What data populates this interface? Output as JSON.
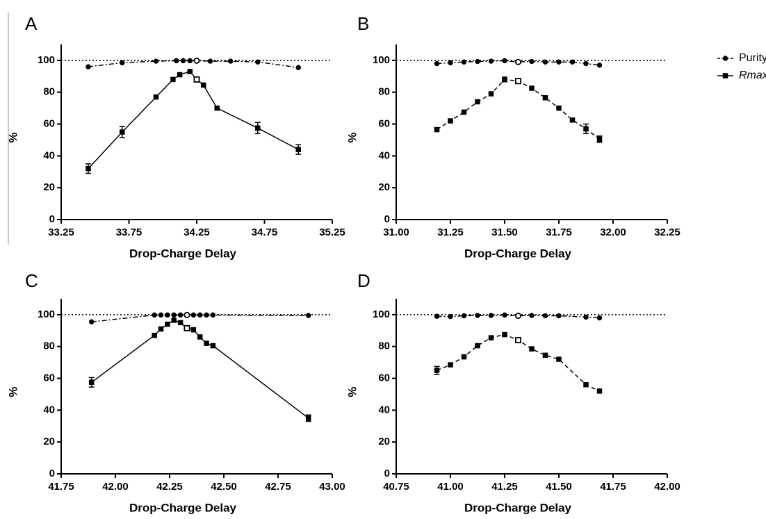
{
  "legend": {
    "entries": [
      {
        "label": "Purity",
        "italic": false,
        "line": "dash-dot",
        "marker": "circle"
      },
      {
        "label": "Rmax",
        "italic": true,
        "line": "dashed",
        "marker": "square"
      }
    ]
  },
  "chart_data": [
    {
      "panel": "A",
      "type": "line",
      "xlabel": "Drop-Charge Delay",
      "ylabel": "%",
      "xlim": [
        33.25,
        35.25
      ],
      "ylim": [
        0,
        110
      ],
      "xticks": [
        "33.25",
        "33.75",
        "34.25",
        "34.75",
        "35.25"
      ],
      "yticks": [
        "0",
        "20",
        "40",
        "60",
        "80",
        "100"
      ],
      "reference_line": 100,
      "highlight_x": 34.25,
      "series": [
        {
          "name": "Purity",
          "style": "dashed",
          "x": [
            33.45,
            33.7,
            33.95,
            34.1,
            34.15,
            34.2,
            34.25,
            34.35,
            34.5,
            34.7,
            35.0
          ],
          "y": [
            96,
            98.5,
            99.5,
            99.8,
            99.8,
            99.8,
            99.8,
            99.5,
            99.5,
            99,
            95.5
          ]
        },
        {
          "name": "Rmax",
          "style": "solid",
          "x": [
            33.45,
            33.7,
            33.95,
            34.075,
            34.125,
            34.2,
            34.25,
            34.3,
            34.4,
            34.7,
            35.0
          ],
          "y": [
            32,
            55,
            77,
            88,
            91,
            93,
            88,
            84.5,
            70,
            57.5,
            44
          ],
          "errors": [
            3,
            3.5,
            0,
            0,
            0,
            0,
            0,
            0,
            0,
            3.5,
            3
          ]
        }
      ]
    },
    {
      "panel": "B",
      "type": "line",
      "xlabel": "Drop-Charge Delay",
      "ylabel": "%",
      "xlim": [
        31.0,
        32.25
      ],
      "ylim": [
        0,
        110
      ],
      "xticks": [
        "31.00",
        "31.25",
        "31.50",
        "31.75",
        "32.00",
        "32.25"
      ],
      "yticks": [
        "0",
        "20",
        "40",
        "60",
        "80",
        "100"
      ],
      "reference_line": 100,
      "highlight_x": 31.5625,
      "series": [
        {
          "name": "Purity",
          "style": "dashed",
          "x": [
            31.1875,
            31.25,
            31.3125,
            31.375,
            31.4375,
            31.5,
            31.5625,
            31.625,
            31.6875,
            31.75,
            31.8125,
            31.875,
            31.9375
          ],
          "y": [
            98,
            98.5,
            99,
            99.3,
            99.5,
            99.8,
            99,
            99.3,
            99,
            99,
            99,
            98,
            97
          ]
        },
        {
          "name": "Rmax",
          "style": "dashed",
          "x": [
            31.1875,
            31.25,
            31.3125,
            31.375,
            31.4375,
            31.5,
            31.5625,
            31.625,
            31.6875,
            31.75,
            31.8125,
            31.875,
            31.9375
          ],
          "y": [
            56.5,
            62,
            67.5,
            74,
            79,
            88,
            87,
            82.5,
            76.5,
            70,
            62.5,
            57,
            50.5
          ],
          "errors": [
            0,
            0,
            0,
            0,
            0,
            1.5,
            0,
            0,
            0,
            0,
            0,
            3,
            2
          ]
        }
      ]
    },
    {
      "panel": "C",
      "type": "line",
      "xlabel": "Drop-Charge Delay",
      "ylabel": "%",
      "xlim": [
        41.75,
        43.0
      ],
      "ylim": [
        0,
        110
      ],
      "xticks": [
        "41.75",
        "42.00",
        "42.25",
        "42.50",
        "42.75",
        "43.00"
      ],
      "yticks": [
        "0",
        "20",
        "40",
        "60",
        "80",
        "100"
      ],
      "reference_line": 100,
      "highlight_x": 42.33,
      "series": [
        {
          "name": "Purity",
          "style": "dashed",
          "x": [
            41.89,
            42.18,
            42.21,
            42.24,
            42.27,
            42.3,
            42.33,
            42.36,
            42.39,
            42.42,
            42.45,
            42.89
          ],
          "y": [
            95.5,
            99.8,
            99.8,
            99.8,
            99.8,
            99.8,
            99.8,
            99.8,
            99.8,
            99.8,
            99.8,
            99.5
          ]
        },
        {
          "name": "Rmax",
          "style": "solid",
          "x": [
            41.89,
            42.18,
            42.21,
            42.24,
            42.27,
            42.3,
            42.33,
            42.36,
            42.39,
            42.42,
            42.45,
            42.89
          ],
          "y": [
            57.5,
            87,
            91,
            94,
            96.5,
            95,
            91.5,
            90.5,
            86,
            82,
            80.5,
            35
          ],
          "errors": [
            3,
            0,
            0,
            0,
            0,
            0,
            0,
            0,
            0,
            0,
            0,
            2
          ]
        }
      ]
    },
    {
      "panel": "D",
      "type": "line",
      "xlabel": "Drop-Charge Delay",
      "ylabel": "%",
      "xlim": [
        40.75,
        42.0
      ],
      "ylim": [
        0,
        110
      ],
      "xticks": [
        "40.75",
        "41.00",
        "41.25",
        "41.50",
        "41.75",
        "42.00"
      ],
      "yticks": [
        "0",
        "20",
        "40",
        "60",
        "80",
        "100"
      ],
      "reference_line": 100,
      "highlight_x": 41.3125,
      "series": [
        {
          "name": "Purity",
          "style": "dashed",
          "x": [
            40.9375,
            41.0,
            41.0625,
            41.125,
            41.1875,
            41.25,
            41.3125,
            41.375,
            41.4375,
            41.5,
            41.625,
            41.6875
          ],
          "y": [
            99,
            98.8,
            99.3,
            99.5,
            99.5,
            99.8,
            99.3,
            99.5,
            99.3,
            99.3,
            98.5,
            98
          ]
        },
        {
          "name": "Rmax",
          "style": "dashed",
          "x": [
            40.9375,
            41.0,
            41.0625,
            41.125,
            41.1875,
            41.25,
            41.3125,
            41.375,
            41.4375,
            41.5,
            41.625,
            41.6875
          ],
          "y": [
            65,
            68.5,
            73.5,
            80.5,
            85.5,
            87.5,
            84,
            78.5,
            74.5,
            72,
            56,
            52
          ],
          "errors": [
            2.5,
            0,
            0,
            0,
            0,
            0,
            0,
            0,
            0,
            0,
            0,
            0
          ]
        }
      ]
    }
  ]
}
